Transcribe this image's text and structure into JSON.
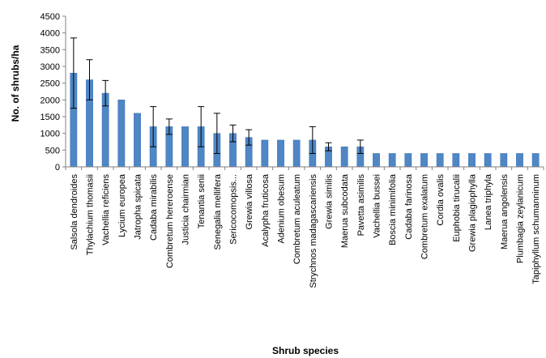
{
  "chart_data": {
    "type": "bar",
    "title": "",
    "xlabel": "Shrub species",
    "ylabel": "No. of shrubs/ha",
    "ylim": [
      0,
      4500
    ],
    "yticks": [
      0,
      500,
      1000,
      1500,
      2000,
      2500,
      3000,
      3500,
      4000,
      4500
    ],
    "grid": false,
    "legend": "none",
    "bar_color": "#4f86c6",
    "bar_edge_color": "#3a6ea8",
    "axis_color": "#808080",
    "error_bar_color": "#000000",
    "categories": [
      "Salsola dendroides",
      "Thylachium thomasii",
      "Vachellia reficiens",
      "Lycium europea",
      "Jatropha spicata",
      "Cadaba mirabilis",
      "Combretum hereroense",
      "Justicia chairmian",
      "Tenantia senii",
      "Senegalia mellifera",
      "Sericocomopsis...",
      "Grewia villosa",
      "Acalypha fruticosa",
      "Adenium obesum",
      "Combretum aculeatum",
      "Strychnos madagascariensis",
      "Grewia similis",
      "Maerua subcodata",
      "Pavetta asimilis",
      "Vachellia bussei",
      "Boscia minimifolia",
      "Cadaba farinosa",
      "Combretum exalatum",
      "Cordia ovalis",
      "Euphobia tirucalii",
      "Grewia plagiophylla",
      "Lanea triphyla",
      "Maerua angolensis",
      "Plumbagia zeylanicum",
      "Tapiphyllum schumanninum"
    ],
    "values": [
      2800,
      2600,
      2200,
      2000,
      1600,
      1200,
      1200,
      1200,
      1200,
      1000,
      1000,
      880,
      800,
      800,
      800,
      800,
      600,
      600,
      600,
      400,
      400,
      400,
      400,
      400,
      400,
      400,
      400,
      400,
      400,
      400
    ],
    "error": [
      1050,
      600,
      380,
      0,
      0,
      600,
      230,
      0,
      600,
      600,
      250,
      230,
      0,
      0,
      0,
      400,
      120,
      0,
      200,
      0,
      0,
      0,
      0,
      0,
      0,
      0,
      0,
      0,
      0,
      0
    ]
  }
}
